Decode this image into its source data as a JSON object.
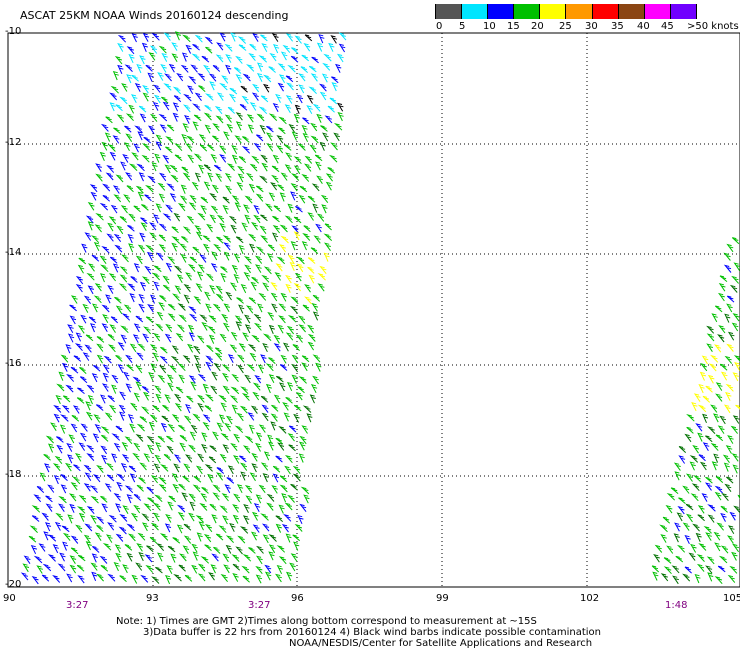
{
  "title": "ASCAT 25KM NOAA Winds 20160124 descending",
  "legend": {
    "colors": [
      "#555555",
      "#00e5ff",
      "#0000ff",
      "#00c000",
      "#ffff00",
      "#ff9900",
      "#ff0000",
      "#8b4513",
      "#ff00ff",
      "#7000ff"
    ],
    "labels": [
      "0",
      "5",
      "10",
      "15",
      "20",
      "25",
      "30",
      "35",
      "40",
      "45",
      ">50 knots"
    ]
  },
  "map": {
    "lat_ticks": [
      "-10",
      "-12",
      "-14",
      "-16",
      "-18",
      "-20"
    ],
    "lon_ticks": [
      "90",
      "93",
      "96",
      "99",
      "102",
      "105"
    ],
    "pass_times": [
      "3:27",
      "3:27",
      "1:48"
    ]
  },
  "notes": {
    "line1": "Note: 1) Times are GMT 2)Times along bottom correspond to measurement at ~15S",
    "line2": "3)Data buffer is 22 hrs from 20160124 4) Black wind barbs indicate possible contamination",
    "line3": "NOAA/NESDIS/Center for Satellite Applications and Research"
  }
}
